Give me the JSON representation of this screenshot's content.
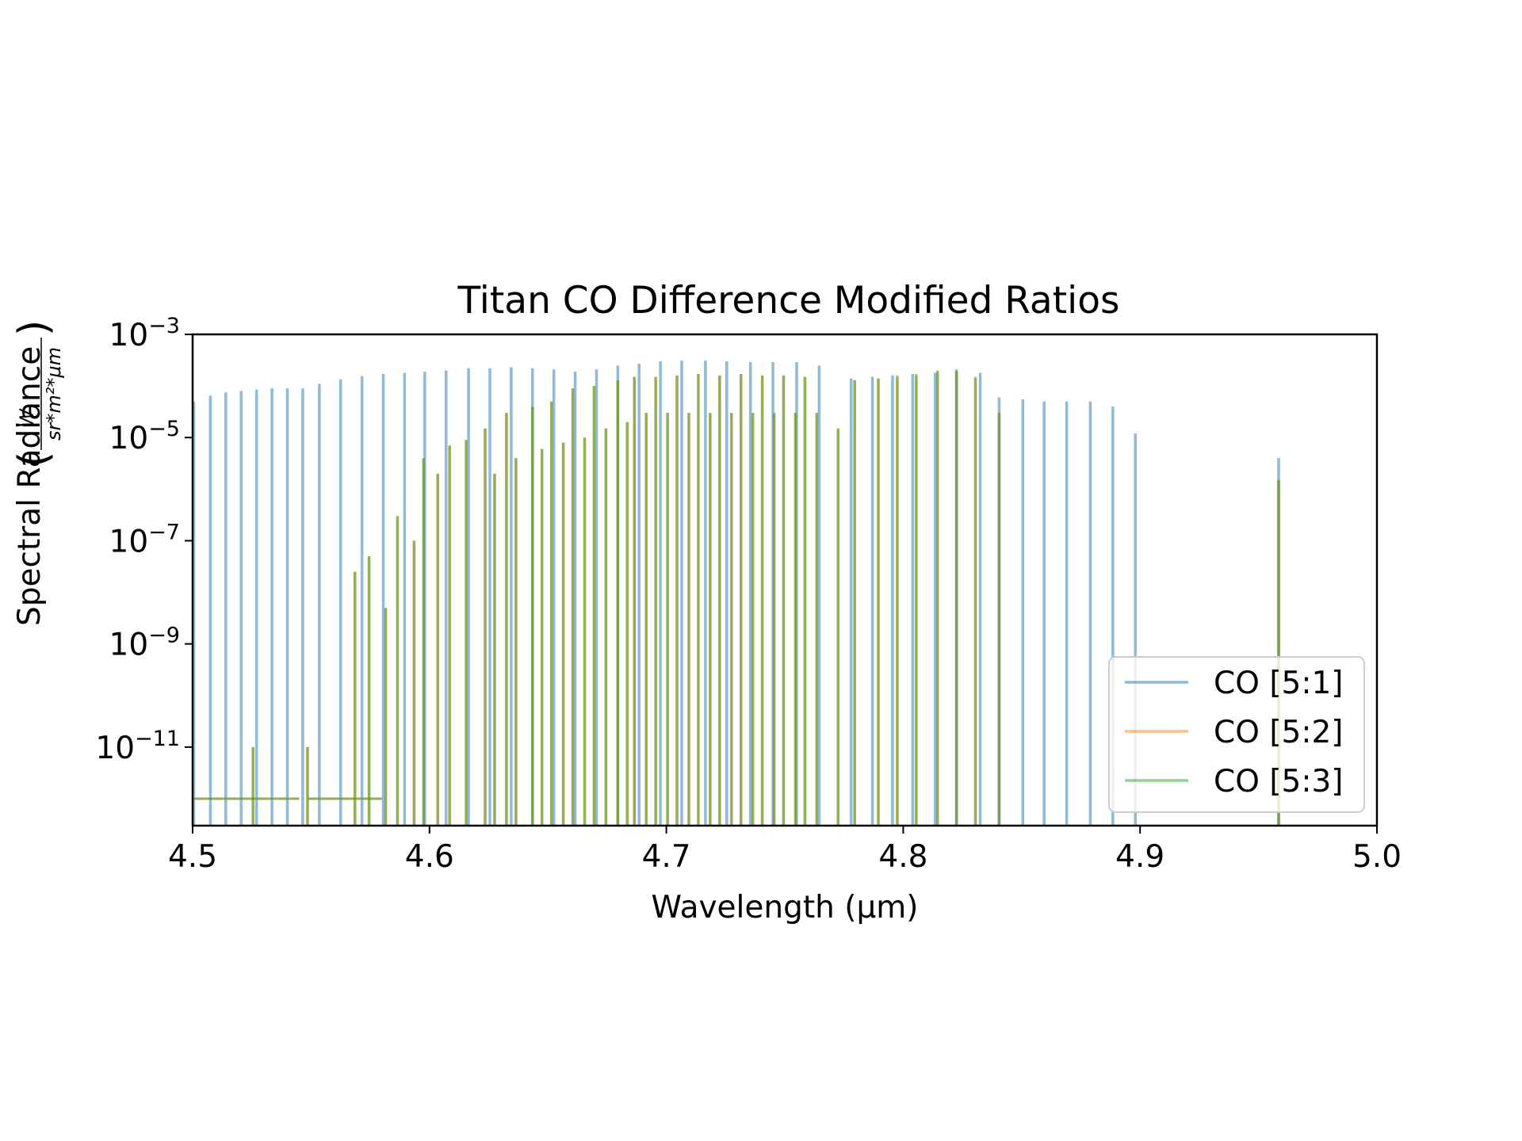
{
  "chart_data": {
    "type": "line",
    "title": "Titan CO Difference Modified Ratios",
    "xlabel": "Wavelength (μm)",
    "ylabel": "Spectral Radiance",
    "ylabel_unit": "(W / (sr*m²*μm))",
    "ylabel_unit_numerator": "W",
    "ylabel_unit_denominator": "sr*m²*μm",
    "xlim": [
      4.5,
      5.0
    ],
    "ylim": [
      3e-13,
      0.001
    ],
    "yscale": "log",
    "xticks": [
      "4.5",
      "4.6",
      "4.7",
      "4.8",
      "4.9",
      "5.0"
    ],
    "yticks": [
      {
        "value": 0.001,
        "base": "10",
        "exp": "−3"
      },
      {
        "value": 1e-05,
        "base": "10",
        "exp": "−5"
      },
      {
        "value": 1e-07,
        "base": "10",
        "exp": "−7"
      },
      {
        "value": 1e-09,
        "base": "10",
        "exp": "−9"
      },
      {
        "value": 1e-11,
        "base": "10",
        "exp": "−11"
      }
    ],
    "grid": false,
    "legend_position": "lower-right",
    "floor_value": 1e-12,
    "series": [
      {
        "name": "CO [5:1]",
        "color": "#1f77b4",
        "lines": [
          {
            "x": 4.5005,
            "y": 5e-05
          },
          {
            "x": 4.5075,
            "y": 6.5e-05
          },
          {
            "x": 4.514,
            "y": 7.5e-05
          },
          {
            "x": 4.5205,
            "y": 8e-05
          },
          {
            "x": 4.527,
            "y": 8.5e-05
          },
          {
            "x": 4.5335,
            "y": 9e-05
          },
          {
            "x": 4.54,
            "y": 9e-05
          },
          {
            "x": 4.5465,
            "y": 9e-05
          },
          {
            "x": 4.5535,
            "y": 0.00011
          },
          {
            "x": 4.5625,
            "y": 0.000135
          },
          {
            "x": 4.5715,
            "y": 0.000155
          },
          {
            "x": 4.5805,
            "y": 0.00017
          },
          {
            "x": 4.5895,
            "y": 0.00018
          },
          {
            "x": 4.598,
            "y": 0.00019
          },
          {
            "x": 4.607,
            "y": 0.0002
          },
          {
            "x": 4.6165,
            "y": 0.00022
          },
          {
            "x": 4.6255,
            "y": 0.00022
          },
          {
            "x": 4.6345,
            "y": 0.00023
          },
          {
            "x": 4.6435,
            "y": 0.00022
          },
          {
            "x": 4.6525,
            "y": 0.00021
          },
          {
            "x": 4.6615,
            "y": 0.00019
          },
          {
            "x": 4.6705,
            "y": 0.00021
          },
          {
            "x": 4.6795,
            "y": 0.00025
          },
          {
            "x": 4.6885,
            "y": 0.00027
          },
          {
            "x": 4.6975,
            "y": 0.0003
          },
          {
            "x": 4.7065,
            "y": 0.00031
          },
          {
            "x": 4.7165,
            "y": 0.00031
          },
          {
            "x": 4.7255,
            "y": 0.0003
          },
          {
            "x": 4.7355,
            "y": 0.00029
          },
          {
            "x": 4.745,
            "y": 0.00029
          },
          {
            "x": 4.755,
            "y": 0.00029
          },
          {
            "x": 4.7645,
            "y": 0.00025
          },
          {
            "x": 4.778,
            "y": 0.00014
          },
          {
            "x": 4.787,
            "y": 0.00015
          },
          {
            "x": 4.7955,
            "y": 0.00016
          },
          {
            "x": 4.804,
            "y": 0.00017
          },
          {
            "x": 4.8135,
            "y": 0.00018
          },
          {
            "x": 4.8225,
            "y": 0.00019
          },
          {
            "x": 4.8325,
            "y": 0.00018
          },
          {
            "x": 4.8405,
            "y": 6e-05
          },
          {
            "x": 4.8505,
            "y": 5.5e-05
          },
          {
            "x": 4.8595,
            "y": 5e-05
          },
          {
            "x": 4.869,
            "y": 5e-05
          },
          {
            "x": 4.879,
            "y": 5e-05
          },
          {
            "x": 4.8885,
            "y": 4e-05
          },
          {
            "x": 4.898,
            "y": 1.2e-05
          },
          {
            "x": 4.9585,
            "y": 4e-06
          }
        ]
      },
      {
        "name": "CO [5:2]",
        "color": "#ff7f0e",
        "lines": [
          {
            "x": 4.5255,
            "y": 1e-11
          },
          {
            "x": 4.5485,
            "y": 1e-11
          },
          {
            "x": 4.5685,
            "y": 2.5e-08
          },
          {
            "x": 4.5745,
            "y": 5e-08
          },
          {
            "x": 4.5815,
            "y": 5e-09
          },
          {
            "x": 4.5865,
            "y": 3e-07
          },
          {
            "x": 4.5935,
            "y": 1e-07
          },
          {
            "x": 4.5975,
            "y": 4e-06
          },
          {
            "x": 4.6035,
            "y": 2e-06
          },
          {
            "x": 4.6085,
            "y": 7e-06
          },
          {
            "x": 4.6155,
            "y": 9e-06
          },
          {
            "x": 4.6235,
            "y": 1.5e-05
          },
          {
            "x": 4.6275,
            "y": 2e-06
          },
          {
            "x": 4.6325,
            "y": 3e-05
          },
          {
            "x": 4.6365,
            "y": 4e-06
          },
          {
            "x": 4.6435,
            "y": 4e-05
          },
          {
            "x": 4.6475,
            "y": 6e-06
          },
          {
            "x": 4.6515,
            "y": 5e-05
          },
          {
            "x": 4.6565,
            "y": 8e-06
          },
          {
            "x": 4.6605,
            "y": 9e-05
          },
          {
            "x": 4.6655,
            "y": 1e-05
          },
          {
            "x": 4.6695,
            "y": 0.0001
          },
          {
            "x": 4.6745,
            "y": 1.5e-05
          },
          {
            "x": 4.6795,
            "y": 0.00013
          },
          {
            "x": 4.6835,
            "y": 2e-05
          },
          {
            "x": 4.6865,
            "y": 0.00015
          },
          {
            "x": 4.6915,
            "y": 3e-05
          },
          {
            "x": 4.6955,
            "y": 0.00015
          },
          {
            "x": 4.7005,
            "y": 3e-05
          },
          {
            "x": 4.7045,
            "y": 0.00016
          },
          {
            "x": 4.7095,
            "y": 3e-05
          },
          {
            "x": 4.7135,
            "y": 0.00017
          },
          {
            "x": 4.7185,
            "y": 3e-05
          },
          {
            "x": 4.7225,
            "y": 0.00016
          },
          {
            "x": 4.7275,
            "y": 3e-05
          },
          {
            "x": 4.7315,
            "y": 0.00017
          },
          {
            "x": 4.7365,
            "y": 3e-05
          },
          {
            "x": 4.7405,
            "y": 0.00016
          },
          {
            "x": 4.7455,
            "y": 3e-05
          },
          {
            "x": 4.7495,
            "y": 0.00016
          },
          {
            "x": 4.7545,
            "y": 3e-05
          },
          {
            "x": 4.7585,
            "y": 0.00015
          },
          {
            "x": 4.7635,
            "y": 3e-05
          },
          {
            "x": 4.7725,
            "y": 1.5e-05
          },
          {
            "x": 4.7795,
            "y": 0.00013
          },
          {
            "x": 4.7895,
            "y": 0.00014
          },
          {
            "x": 4.7975,
            "y": 0.00015
          },
          {
            "x": 4.8055,
            "y": 0.00016
          },
          {
            "x": 4.8145,
            "y": 0.00019
          },
          {
            "x": 4.8225,
            "y": 0.0002
          },
          {
            "x": 4.8305,
            "y": 0.00014
          },
          {
            "x": 4.8405,
            "y": 3e-05
          },
          {
            "x": 4.9585,
            "y": 1.5e-06
          }
        ]
      },
      {
        "name": "CO [5:3]",
        "color": "#2ca02c",
        "lines": [
          {
            "x": 4.5255,
            "y": 1e-11
          },
          {
            "x": 4.5485,
            "y": 1e-11
          },
          {
            "x": 4.5685,
            "y": 2.5e-08
          },
          {
            "x": 4.5745,
            "y": 5e-08
          },
          {
            "x": 4.5815,
            "y": 5e-09
          },
          {
            "x": 4.5865,
            "y": 3e-07
          },
          {
            "x": 4.5935,
            "y": 1e-07
          },
          {
            "x": 4.5975,
            "y": 4e-06
          },
          {
            "x": 4.6035,
            "y": 2e-06
          },
          {
            "x": 4.6085,
            "y": 7e-06
          },
          {
            "x": 4.6155,
            "y": 9e-06
          },
          {
            "x": 4.6235,
            "y": 1.5e-05
          },
          {
            "x": 4.6275,
            "y": 2e-06
          },
          {
            "x": 4.6325,
            "y": 3e-05
          },
          {
            "x": 4.6365,
            "y": 4e-06
          },
          {
            "x": 4.6435,
            "y": 4e-05
          },
          {
            "x": 4.6475,
            "y": 6e-06
          },
          {
            "x": 4.6515,
            "y": 5e-05
          },
          {
            "x": 4.6565,
            "y": 8e-06
          },
          {
            "x": 4.6605,
            "y": 9e-05
          },
          {
            "x": 4.6655,
            "y": 1e-05
          },
          {
            "x": 4.6695,
            "y": 0.0001
          },
          {
            "x": 4.6745,
            "y": 1.5e-05
          },
          {
            "x": 4.6795,
            "y": 0.00013
          },
          {
            "x": 4.6835,
            "y": 2e-05
          },
          {
            "x": 4.6865,
            "y": 0.00015
          },
          {
            "x": 4.6915,
            "y": 3e-05
          },
          {
            "x": 4.6955,
            "y": 0.00015
          },
          {
            "x": 4.7005,
            "y": 3e-05
          },
          {
            "x": 4.7045,
            "y": 0.00016
          },
          {
            "x": 4.7095,
            "y": 3e-05
          },
          {
            "x": 4.7135,
            "y": 0.00017
          },
          {
            "x": 4.7185,
            "y": 3e-05
          },
          {
            "x": 4.7225,
            "y": 0.00016
          },
          {
            "x": 4.7275,
            "y": 3e-05
          },
          {
            "x": 4.7315,
            "y": 0.00017
          },
          {
            "x": 4.7365,
            "y": 3e-05
          },
          {
            "x": 4.7405,
            "y": 0.00016
          },
          {
            "x": 4.7455,
            "y": 3e-05
          },
          {
            "x": 4.7495,
            "y": 0.00016
          },
          {
            "x": 4.7545,
            "y": 3e-05
          },
          {
            "x": 4.7585,
            "y": 0.00015
          },
          {
            "x": 4.7635,
            "y": 3e-05
          },
          {
            "x": 4.7725,
            "y": 1.5e-05
          },
          {
            "x": 4.7795,
            "y": 0.00013
          },
          {
            "x": 4.7895,
            "y": 0.00014
          },
          {
            "x": 4.7975,
            "y": 0.00016
          },
          {
            "x": 4.8055,
            "y": 0.00017
          },
          {
            "x": 4.8145,
            "y": 0.0002
          },
          {
            "x": 4.8225,
            "y": 0.00021
          },
          {
            "x": 4.8305,
            "y": 0.00015
          },
          {
            "x": 4.8405,
            "y": 3e-05
          },
          {
            "x": 4.9585,
            "y": 1.5e-06
          }
        ]
      }
    ]
  }
}
